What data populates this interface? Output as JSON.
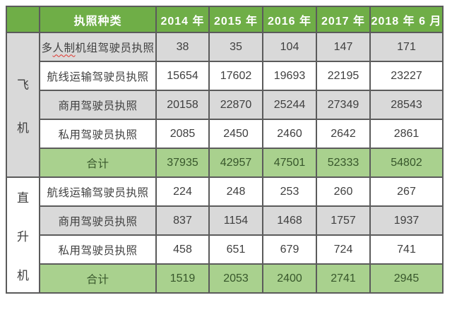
{
  "colors": {
    "header_green": "#6fae47",
    "total_green_bg": "#a9d18e",
    "row_gray": "#d9d9d9",
    "border": "#5b5b5b",
    "body_text": "#3f3f3f",
    "total_text": "#37562b",
    "header_text": "#ffffff",
    "spellcheck_red": "#e0342c"
  },
  "chart_data": {
    "type": "table",
    "corner_label": "",
    "columns": [
      "执照种类",
      "2014 年",
      "2015 年",
      "2016 年",
      "2017 年",
      "2018 年 6 月"
    ],
    "sections": [
      {
        "group": "飞机",
        "group_shade": "gray",
        "rows": [
          {
            "label": "多人制机组驾驶员执照",
            "wavy_text": "人制",
            "values": [
              38,
              35,
              104,
              147,
              171
            ]
          },
          {
            "label": "航线运输驾驶员执照",
            "values": [
              15654,
              17602,
              19693,
              22195,
              23227
            ]
          },
          {
            "label": "商用驾驶员执照",
            "values": [
              20158,
              22870,
              25244,
              27349,
              28543
            ]
          },
          {
            "label": "私用驾驶员执照",
            "values": [
              2085,
              2450,
              2460,
              2642,
              2861
            ]
          },
          {
            "label": "合计",
            "is_total": true,
            "values": [
              37935,
              42957,
              47501,
              52333,
              54802
            ]
          }
        ]
      },
      {
        "group": "直升机",
        "group_shade": "white",
        "rows": [
          {
            "label": "航线运输驾驶员执照",
            "values": [
              224,
              248,
              253,
              260,
              267
            ]
          },
          {
            "label": "商用驾驶员执照",
            "values": [
              837,
              1154,
              1468,
              1757,
              1937
            ]
          },
          {
            "label": "私用驾驶员执照",
            "values": [
              458,
              651,
              679,
              724,
              741
            ]
          },
          {
            "label": "合计",
            "is_total": true,
            "values": [
              1519,
              2053,
              2400,
              2741,
              2945
            ]
          }
        ]
      }
    ]
  }
}
